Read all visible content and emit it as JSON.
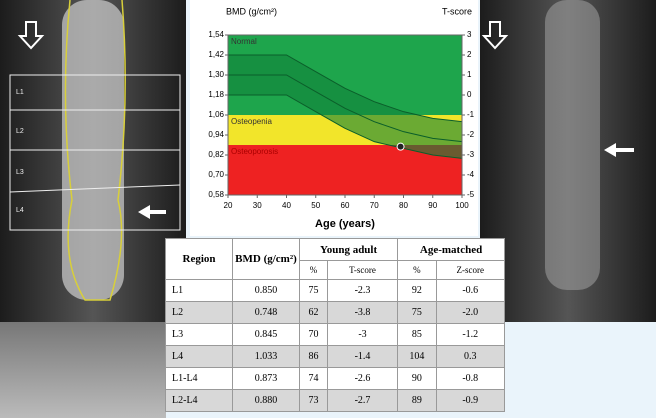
{
  "chart_data": {
    "type": "line",
    "title": "BMD (g/cm²)",
    "y2_title": "T-score",
    "x_label": "Age (years)",
    "x": [
      20,
      30,
      40,
      50,
      60,
      70,
      80,
      90,
      100
    ],
    "series": [
      {
        "color": "#0b5e2a",
        "values": [
          1.42,
          1.42,
          1.42,
          1.32,
          1.22,
          1.14,
          1.08,
          1.04,
          1.02
        ]
      },
      {
        "color": "#0b5e2a",
        "values": [
          1.3,
          1.3,
          1.3,
          1.2,
          1.1,
          1.02,
          0.96,
          0.92,
          0.9
        ]
      },
      {
        "color": "#0b5e2a",
        "values": [
          1.18,
          1.18,
          1.18,
          1.08,
          0.98,
          0.9,
          0.86,
          0.82,
          0.8
        ]
      }
    ],
    "band_color": "#11823b",
    "points": [
      {
        "x": 79,
        "y": 0.87,
        "color": "#222222"
      }
    ],
    "zones": [
      {
        "label": "Normal",
        "from": -1,
        "to": 3,
        "color": "#1ea54c"
      },
      {
        "label": "Osteopenia",
        "from": -2.5,
        "to": -1,
        "color": "#f2e52a"
      },
      {
        "label": "Osteoporosis",
        "from": -5,
        "to": -2.5,
        "color": "#ee2222"
      }
    ],
    "xlim": [
      20,
      100
    ],
    "xticks": [
      20,
      30,
      40,
      50,
      60,
      70,
      80,
      90,
      100
    ],
    "ylim": [
      0.58,
      1.54
    ],
    "yticks": [
      {
        "value": 0.58,
        "label": "0,58"
      },
      {
        "value": 0.7,
        "label": "0,70"
      },
      {
        "value": 0.82,
        "label": "0,82"
      },
      {
        "value": 0.94,
        "label": "0,94"
      },
      {
        "value": 1.06,
        "label": "1,06"
      },
      {
        "value": 1.18,
        "label": "1,18"
      },
      {
        "value": 1.3,
        "label": "1,30"
      },
      {
        "value": 1.42,
        "label": "1,42"
      },
      {
        "value": 1.54,
        "label": "1,54"
      }
    ],
    "y2lim": [
      -5,
      3
    ],
    "y2ticks": [
      -5,
      -4,
      -3,
      -2,
      -1,
      0,
      1,
      2,
      3
    ]
  },
  "left_image": {
    "labels": [
      "L1",
      "L2",
      "L3",
      "L4"
    ]
  },
  "table": {
    "header": [
      "Region",
      "BMD (g/cm²)",
      "Young adult",
      "Age-matched"
    ],
    "subheader": [
      "%",
      "T-score",
      "%",
      "Z-score"
    ],
    "rows": [
      [
        "L1",
        "0.850",
        "75",
        "-2.3",
        "92",
        "-0.6"
      ],
      [
        "L2",
        "0.748",
        "62",
        "-3.8",
        "75",
        "-2.0"
      ],
      [
        "L3",
        "0.845",
        "70",
        "-3",
        "85",
        "-1.2"
      ],
      [
        "L4",
        "1.033",
        "86",
        "-1.4",
        "104",
        "0.3"
      ],
      [
        "L1-L4",
        "0.873",
        "74",
        "-2.6",
        "90",
        "-0.8"
      ],
      [
        "L2-L4",
        "0.880",
        "73",
        "-2.7",
        "89",
        "-0.9"
      ]
    ]
  }
}
